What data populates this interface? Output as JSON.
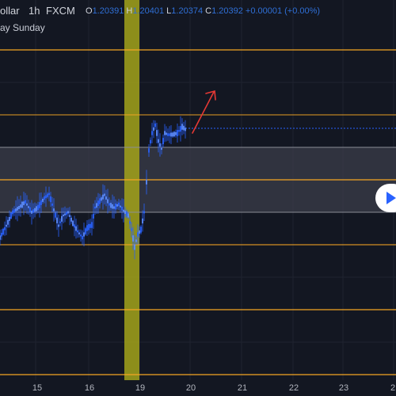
{
  "header": {
    "symbol_partial": "ollar",
    "interval": "1h",
    "source": "FXCM",
    "ohlc": {
      "o_label": "O",
      "o_value": "1.20391",
      "h_label": "H",
      "h_value": "1.20401",
      "l_label": "L",
      "l_value": "1.20374",
      "c_label": "C",
      "c_value": "1.20392",
      "change": "+0.00001 (+0.00%)"
    },
    "session_label": "ay Sunday"
  },
  "xaxis": {
    "ticks": [
      "15",
      "16",
      "19",
      "20",
      "21",
      "22",
      "23",
      "2"
    ]
  },
  "colors": {
    "background": "#131722",
    "level_line": "#f5a623",
    "candle": "#2962ff",
    "highlight_band": "#a3a31a",
    "zone": "#3b3e4a",
    "arrow": "#e53935"
  },
  "icons": {
    "play": "play-icon",
    "arrow": "arrow-up-right-icon"
  }
}
